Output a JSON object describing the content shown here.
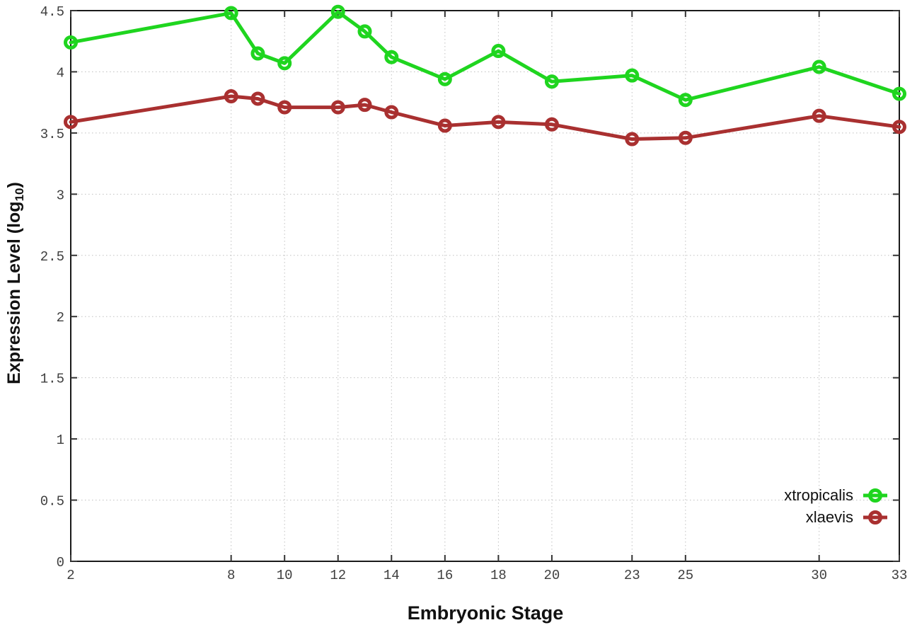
{
  "chart_data": {
    "type": "line",
    "style": "linespoints",
    "marker": "open-circle",
    "title": "",
    "xlabel": "Embryonic Stage",
    "ylabel": "Expression Level (log10)",
    "ylabel_parts": {
      "prefix": "Expression Level (log",
      "sub": "10",
      "suffix": ")"
    },
    "xlim": [
      2,
      33
    ],
    "ylim": [
      0,
      4.5
    ],
    "grid": true,
    "x_ticks": [
      2,
      8,
      10,
      12,
      14,
      16,
      18,
      20,
      23,
      25,
      30,
      33
    ],
    "y_ticks": [
      {
        "v": 0,
        "label": "0"
      },
      {
        "v": 0.5,
        "label": "0.5"
      },
      {
        "v": 1,
        "label": "1"
      },
      {
        "v": 1.5,
        "label": "1.5"
      },
      {
        "v": 2,
        "label": "2"
      },
      {
        "v": 2.5,
        "label": "2.5"
      },
      {
        "v": 3,
        "label": "3"
      },
      {
        "v": 3.5,
        "label": "3.5"
      },
      {
        "v": 4,
        "label": "4"
      },
      {
        "v": 4.5,
        "label": "4.5"
      }
    ],
    "x": [
      2,
      8,
      9,
      10,
      12,
      13,
      14,
      16,
      18,
      20,
      23,
      25,
      30,
      33
    ],
    "series": [
      {
        "name": "xtropicalis",
        "color": "#1fd51f",
        "values": [
          4.24,
          4.48,
          4.15,
          4.07,
          4.49,
          4.33,
          4.12,
          3.94,
          4.17,
          3.92,
          3.97,
          3.77,
          4.04,
          3.82
        ]
      },
      {
        "name": "xlaevis",
        "color": "#a93030",
        "values": [
          3.59,
          3.8,
          3.78,
          3.71,
          3.71,
          3.73,
          3.67,
          3.56,
          3.59,
          3.57,
          3.45,
          3.46,
          3.64,
          3.55
        ]
      }
    ],
    "legend": {
      "position": "inside-bottom-right",
      "entries": [
        "xtropicalis",
        "xlaevis"
      ]
    }
  },
  "colors": {
    "background": "#ffffff",
    "border": "#1a1a1a",
    "grid": "#c0c0c0",
    "tick": "#333333",
    "tick_label": "#3e3e3e",
    "text": "#111111"
  }
}
